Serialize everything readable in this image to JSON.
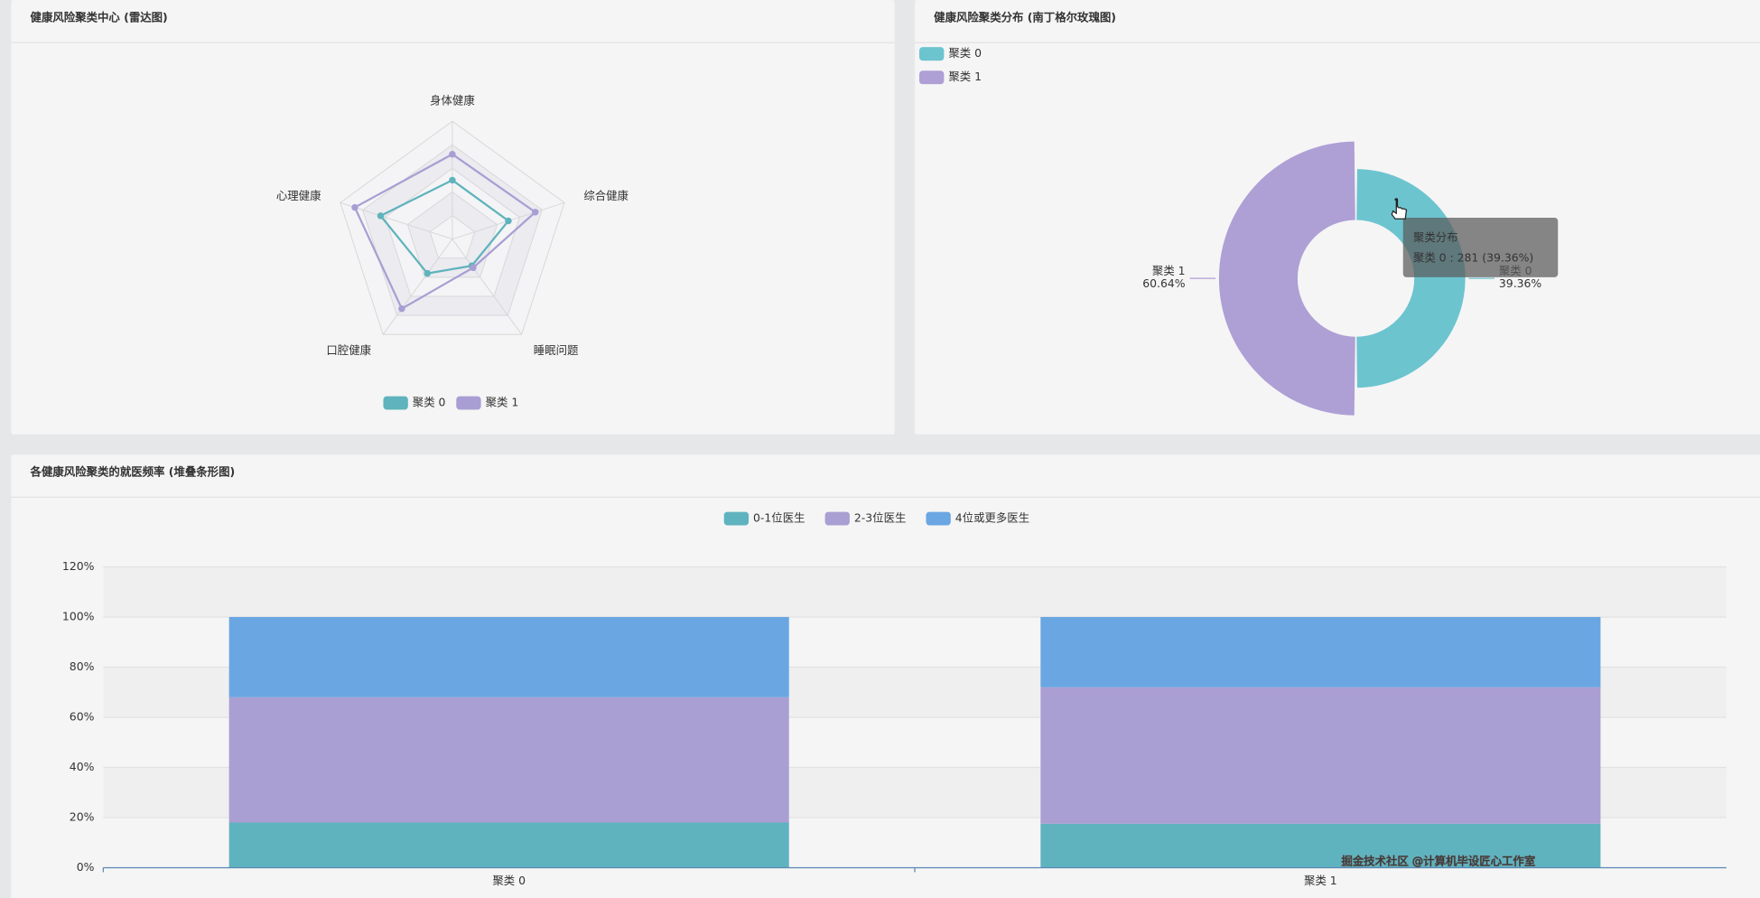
{
  "chart_data": [
    {
      "type": "radar",
      "title": "健康风险聚类中心 (雷达图)",
      "indicators": [
        "身体健康",
        "综合健康",
        "睡眠问题",
        "口腔健康",
        "心理健康"
      ],
      "rlim": [
        0,
        1
      ],
      "series": [
        {
          "name": "聚类 0",
          "color": "#5fb3bc",
          "values": [
            0.5,
            0.5,
            0.28,
            0.36,
            0.64
          ]
        },
        {
          "name": "聚类 1",
          "color": "#a99ed3",
          "values": [
            0.72,
            0.74,
            0.3,
            0.73,
            0.87
          ]
        }
      ],
      "legend": "bottom"
    },
    {
      "type": "pie",
      "rose": "area",
      "title": "健康风险聚类分布 (南丁格尔玫瑰图)",
      "categories": [
        "聚类 0",
        "聚类 1"
      ],
      "values": [
        281,
        433
      ],
      "percent_labels": [
        "39.36%",
        "60.64%"
      ],
      "colors": [
        "#6cc4cf",
        "#ae9fd5"
      ],
      "legend": "top-left",
      "tooltip": {
        "title": "聚类分布",
        "text": "聚类 0 : 281 (39.36%)"
      }
    },
    {
      "type": "bar",
      "stacked": true,
      "title": "各健康风险聚类的就医频率 (堆叠条形图)",
      "categories": [
        "聚类 0",
        "聚类 1"
      ],
      "series": [
        {
          "name": "0-1位医生",
          "color": "#5fb3bf",
          "values": [
            18,
            17.5
          ]
        },
        {
          "name": "2-3位医生",
          "color": "#aa9fd2",
          "values": [
            50,
            54.5
          ]
        },
        {
          "name": "4位或更多医生",
          "color": "#6aa6e2",
          "values": [
            32,
            28
          ]
        }
      ],
      "ylim": [
        0,
        120
      ],
      "yticks": [
        {
          "value": 0,
          "label": "0%"
        },
        {
          "value": 20,
          "label": "20%"
        },
        {
          "value": 40,
          "label": "40%"
        },
        {
          "value": 60,
          "label": "60%"
        },
        {
          "value": 80,
          "label": "80%"
        },
        {
          "value": 100,
          "label": "100%"
        },
        {
          "value": 120,
          "label": "120%"
        }
      ],
      "legend": "top",
      "split_area": true
    }
  ],
  "watermark": "掘金技术社区 @计算机毕设匠心工作室"
}
